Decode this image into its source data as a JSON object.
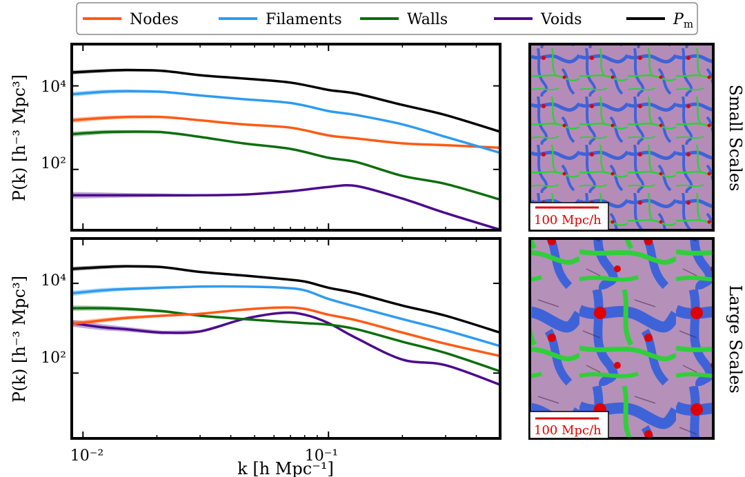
{
  "legend": {
    "items": [
      {
        "label": "Nodes",
        "color": "#ff5a14"
      },
      {
        "label": "Filaments",
        "color": "#2e9bf0"
      },
      {
        "label": "Walls",
        "color": "#0d6e0d"
      },
      {
        "label": "Voids",
        "color": "#4b0a8c"
      },
      {
        "label": "P",
        "sub": "m",
        "color": "#000000"
      }
    ]
  },
  "axes": {
    "xlabel": "k [h Mpc⁻¹]",
    "ylabel": "P(k) [h⁻³ Mpc³]",
    "xticks": [
      "10⁻²",
      "10⁻¹"
    ],
    "yticks": [
      "10⁴",
      "10²"
    ]
  },
  "panels": {
    "top_label": "Small Scales",
    "bottom_label": "Large Scales",
    "scale_bar": "100 Mpc/h"
  },
  "chart_data": [
    {
      "type": "line",
      "title": "",
      "xscale": "log",
      "yscale": "log",
      "xlim": [
        0.009,
        0.5
      ],
      "ylim": [
        3.5,
        100000
      ],
      "x": [
        0.009,
        0.012,
        0.015,
        0.021,
        0.03,
        0.045,
        0.07,
        0.1,
        0.13,
        0.2,
        0.3,
        0.5
      ],
      "series": [
        {
          "name": "P_m",
          "color": "#000000",
          "values": [
            21000,
            23000,
            24000,
            23000,
            18000,
            15000,
            12000,
            8000,
            6500,
            3500,
            2000,
            800
          ],
          "band": 0.12
        },
        {
          "name": "Filaments",
          "color": "#2e9bf0",
          "values": [
            6300,
            7200,
            7500,
            7200,
            5900,
            4800,
            3900,
            2500,
            2000,
            1200,
            600,
            250
          ],
          "band": 0.15
        },
        {
          "name": "Nodes",
          "color": "#ff5a14",
          "values": [
            1500,
            1700,
            1800,
            1800,
            1500,
            1200,
            1000,
            650,
            550,
            420,
            380,
            330
          ],
          "band": 0.15
        },
        {
          "name": "Walls",
          "color": "#0d6e0d",
          "values": [
            700,
            780,
            800,
            780,
            600,
            420,
            310,
            190,
            150,
            70,
            45,
            19
          ],
          "band": 0.15
        },
        {
          "name": "Voids",
          "color": "#4b0a8c",
          "values": [
            24,
            24,
            24,
            24,
            24,
            25,
            30,
            38,
            40,
            20,
            9,
            3.6
          ],
          "band": 0.2
        }
      ]
    },
    {
      "type": "line",
      "title": "",
      "xscale": "log",
      "yscale": "log",
      "xlim": [
        0.009,
        0.5
      ],
      "ylim": [
        3.5,
        100000
      ],
      "x": [
        0.009,
        0.012,
        0.015,
        0.021,
        0.03,
        0.045,
        0.065,
        0.08,
        0.1,
        0.13,
        0.2,
        0.3,
        0.5
      ],
      "series": [
        {
          "name": "P_m",
          "color": "#000000",
          "values": [
            21000,
            23000,
            24000,
            23000,
            18000,
            15000,
            12500,
            11000,
            8000,
            6000,
            3200,
            1900,
            800
          ],
          "band": 0.12
        },
        {
          "name": "Filaments",
          "color": "#2e9bf0",
          "values": [
            6000,
            7000,
            7500,
            8000,
            8500,
            8500,
            8000,
            7000,
            4500,
            3000,
            1600,
            900,
            400
          ],
          "band": 0.15
        },
        {
          "name": "Nodes",
          "color": "#ff5a14",
          "values": [
            1250,
            1500,
            1700,
            1900,
            2100,
            2600,
            2900,
            2700,
            2000,
            1500,
            800,
            450,
            240
          ],
          "band": 0.15
        },
        {
          "name": "Walls",
          "color": "#0d6e0d",
          "values": [
            2800,
            2800,
            2700,
            2400,
            1900,
            1600,
            1400,
            1300,
            1200,
            950,
            500,
            280,
            110
          ],
          "band": 0.15
        },
        {
          "name": "Voids",
          "color": "#4b0a8c",
          "values": [
            1300,
            1050,
            950,
            800,
            850,
            1600,
            2200,
            2000,
            1300,
            600,
            200,
            150,
            55
          ],
          "band": 0.2
        }
      ]
    }
  ]
}
